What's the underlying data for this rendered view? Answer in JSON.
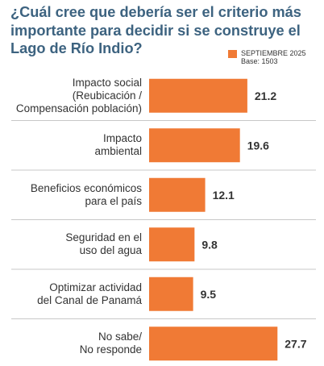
{
  "chart_data": {
    "type": "bar",
    "orientation": "horizontal",
    "title": "¿Cuál cree que debería ser el criterio más importante para decidir si se construye el Lago de Río Indio?",
    "categories": [
      "Impacto social\n(Reubicación /\nCompensación población)",
      "Impacto\nambiental",
      "Beneficios económicos\npara el país",
      "Seguridad en el\nuso del agua",
      "Optimizar actividad\ndel Canal de Panamá",
      "No sabe/\nNo responde"
    ],
    "series": [
      {
        "name": "SEPTIEMBRE 2025",
        "values": [
          21.2,
          19.6,
          12.1,
          9.8,
          9.5,
          27.7
        ]
      }
    ],
    "data_labels": [
      "21.2",
      "19.6",
      "12.1",
      "9.8",
      "9.5",
      "27.7"
    ],
    "legend": {
      "label": "SEPTIEMBRE 2025",
      "base": "Base: 1503",
      "position": "top-right"
    },
    "xlim": [
      0,
      30
    ],
    "grid": false,
    "colors": {
      "bar": "#f07a35",
      "title": "#3d6380",
      "text": "#333333",
      "separator": "#c8c8c8"
    }
  }
}
